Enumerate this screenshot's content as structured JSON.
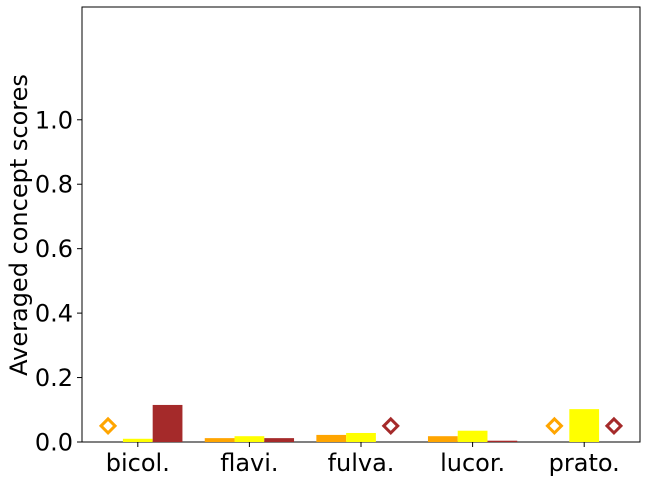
{
  "chart_data": {
    "type": "bar",
    "title": "",
    "xlabel": "",
    "ylabel": "Averaged concept scores",
    "ylim": [
      0,
      1.35
    ],
    "yticks": [
      {
        "value": 0.0,
        "label": "0.0"
      },
      {
        "value": 0.2,
        "label": "0.2"
      },
      {
        "value": 0.4,
        "label": "0.4"
      },
      {
        "value": 0.6,
        "label": "0.6"
      },
      {
        "value": 0.8,
        "label": "0.8"
      },
      {
        "value": 1.0,
        "label": "1.0"
      }
    ],
    "categories": [
      "bicol.",
      "flavi.",
      "fulva.",
      "lucor.",
      "prato."
    ],
    "grid": false,
    "legend": "none",
    "series": [
      {
        "color": "#ffa500",
        "values": [
          null,
          0.012,
          0.022,
          0.018,
          null
        ],
        "markers": [
          0.05,
          null,
          null,
          null,
          0.05
        ]
      },
      {
        "color": "#ffff00",
        "values": [
          0.01,
          0.018,
          0.028,
          0.035,
          0.102
        ],
        "markers": [
          null,
          null,
          null,
          null,
          null
        ]
      },
      {
        "color": "#a52a2a",
        "values": [
          0.115,
          0.012,
          null,
          0.004,
          null
        ],
        "markers": [
          null,
          null,
          0.05,
          null,
          0.05
        ]
      }
    ]
  }
}
